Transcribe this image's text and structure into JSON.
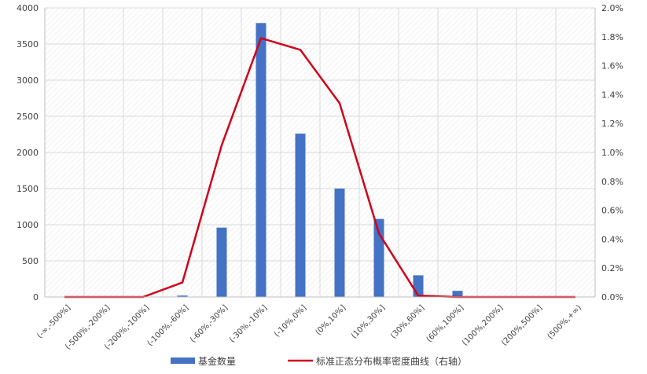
{
  "chart_data": {
    "type": "bar+line",
    "categories": [
      "(-∞,-500%]",
      "(-500%,-200%]",
      "(-200%,-100%]",
      "(-100%,-60%]",
      "(-60%,-30%]",
      "(-30%,-10%]",
      "(-10%,0%]",
      "(0%,10%]",
      "(10%,30%]",
      "(30%,60%]",
      "(60%,100%]",
      "(100%,200%]",
      "(200%,500%]",
      "(500%,+∞)"
    ],
    "series": [
      {
        "name": "基金数量",
        "type": "bar",
        "axis": "left",
        "color": "#4472C4",
        "values": [
          0,
          0,
          0,
          20,
          960,
          3790,
          2260,
          1500,
          1080,
          300,
          85,
          0,
          0,
          0
        ]
      },
      {
        "name": "标准正态分布概率密度曲线（右轴）",
        "type": "line",
        "axis": "right",
        "color": "#D0021B",
        "values": [
          0.0,
          0.0,
          0.0,
          0.001,
          0.0105,
          0.0179,
          0.0171,
          0.0134,
          0.0044,
          0.0001,
          0.0,
          0.0,
          0.0,
          0.0
        ]
      }
    ],
    "y_left": {
      "min": 0,
      "max": 4000,
      "ticks": [
        0,
        500,
        1000,
        1500,
        2000,
        2500,
        3000,
        3500,
        4000
      ]
    },
    "y_right": {
      "min": 0,
      "max": 0.02,
      "ticks": [
        "0.0%",
        "0.2%",
        "0.4%",
        "0.6%",
        "0.8%",
        "1.0%",
        "1.2%",
        "1.4%",
        "1.6%",
        "1.8%",
        "2.0%"
      ]
    },
    "grid": true,
    "legend_position": "bottom"
  }
}
